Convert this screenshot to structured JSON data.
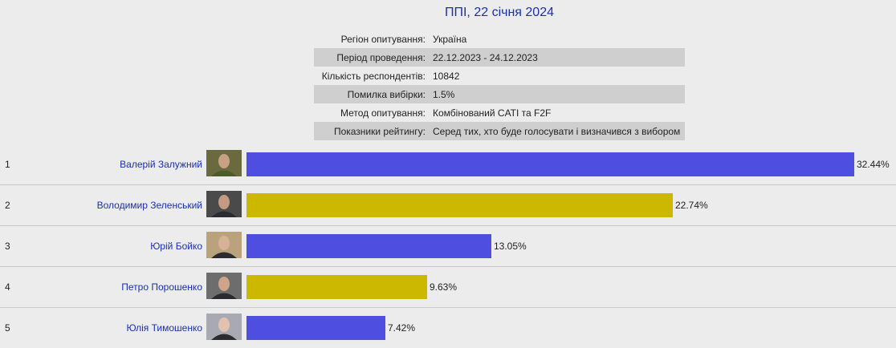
{
  "title": "ППІ, 22 січня 2024",
  "meta": [
    {
      "key": "Регіон опитування:",
      "value": "Україна"
    },
    {
      "key": "Період проведення:",
      "value": "22.12.2023 - 24.12.2023"
    },
    {
      "key": "Кількість респондентів:",
      "value": "10842"
    },
    {
      "key": "Помилка вибірки:",
      "value": "1.5%"
    },
    {
      "key": "Метод опитування:",
      "value": "Комбінований CATI та F2F"
    },
    {
      "key": "Показники рейтингу:",
      "value": "Серед тих, хто буде голосувати і визначився з вибором"
    }
  ],
  "colors": {
    "blue": "#4e4ee0",
    "olive": "#cdb800"
  },
  "chart_data": {
    "type": "bar",
    "orientation": "horizontal",
    "categories": [
      "Валерій Залужний",
      "Володимир Зеленський",
      "Юрій Бойко",
      "Петро Порошенко",
      "Юлія Тимошенко"
    ],
    "ranks": [
      "1",
      "2",
      "3",
      "4",
      "5"
    ],
    "values": [
      32.44,
      22.74,
      13.05,
      9.63,
      7.42
    ],
    "value_labels": [
      "32.44%",
      "22.74%",
      "13.05%",
      "9.63%",
      "7.42%"
    ],
    "bar_colors": [
      "#4e4ee0",
      "#cdb800",
      "#4e4ee0",
      "#cdb800",
      "#4e4ee0"
    ],
    "photo_icons": [
      "portrait-military-icon",
      "portrait-icon",
      "portrait-icon",
      "portrait-icon",
      "portrait-icon"
    ]
  }
}
